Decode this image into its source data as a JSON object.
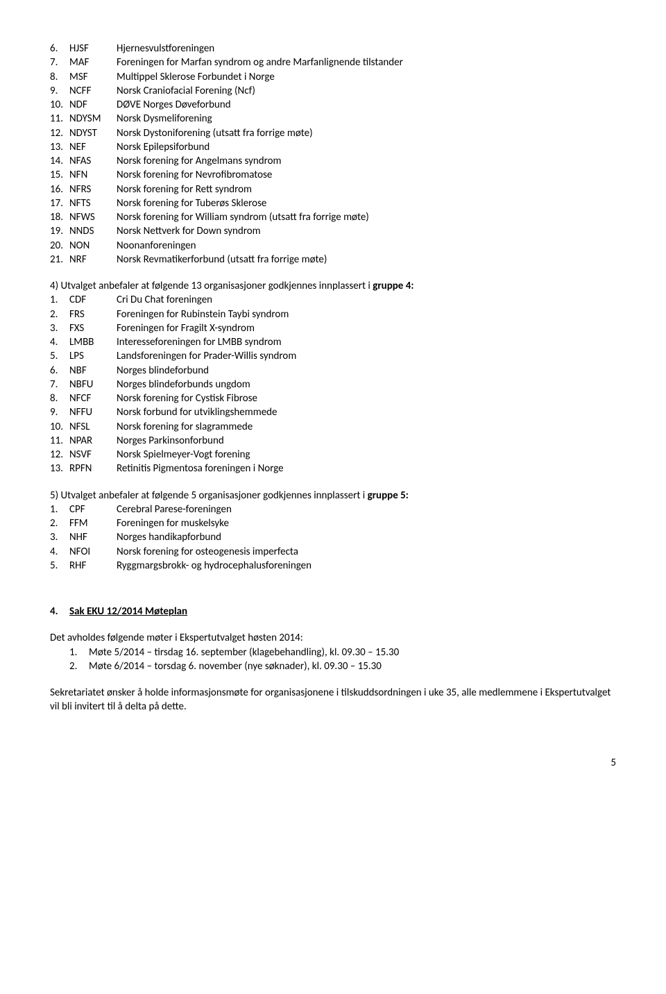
{
  "list1": [
    {
      "n": "6.",
      "a": "HJSF",
      "d": "Hjernesvulstforeningen"
    },
    {
      "n": "7.",
      "a": "MAF",
      "d": "Foreningen for Marfan syndrom og andre Marfanlignende tilstander"
    },
    {
      "n": "8.",
      "a": "MSF",
      "d": "Multippel Sklerose Forbundet i Norge"
    },
    {
      "n": "9.",
      "a": "NCFF",
      "d": "Norsk Craniofacial Forening (Ncf)"
    },
    {
      "n": "10.",
      "a": "NDF",
      "d": "DØVE Norges Døveforbund"
    },
    {
      "n": "11.",
      "a": "NDYSM",
      "d": "Norsk Dysmeliforening"
    },
    {
      "n": "12.",
      "a": "NDYST",
      "d": "Norsk Dystoniforening (utsatt fra forrige møte)"
    },
    {
      "n": "13.",
      "a": "NEF",
      "d": "Norsk Epilepsiforbund"
    },
    {
      "n": "14.",
      "a": "NFAS",
      "d": "Norsk forening for Angelmans syndrom"
    },
    {
      "n": "15.",
      "a": "NFN",
      "d": "Norsk forening for Nevrofibromatose"
    },
    {
      "n": "16.",
      "a": "NFRS",
      "d": "Norsk forening for Rett syndrom"
    },
    {
      "n": "17.",
      "a": "NFTS",
      "d": "Norsk forening for Tuberøs Sklerose"
    },
    {
      "n": "18.",
      "a": "NFWS",
      "d": "Norsk forening for William syndrom (utsatt fra forrige møte)"
    },
    {
      "n": "19.",
      "a": "NNDS",
      "d": "Norsk Nettverk for Down syndrom"
    },
    {
      "n": "20.",
      "a": "NON",
      "d": "Noonanforeningen"
    },
    {
      "n": "21.",
      "a": "NRF",
      "d": "Norsk Revmatikerforbund (utsatt fra forrige møte)"
    }
  ],
  "para4_lead": "4) Utvalget anbefaler at følgende 13 organisasjoner godkjennes innplassert i ",
  "para4_bold": "gruppe 4:",
  "list4": [
    {
      "n": "1.",
      "a": "CDF",
      "d": "Cri Du Chat foreningen"
    },
    {
      "n": "2.",
      "a": "FRS",
      "d": "Foreningen for Rubinstein Taybi syndrom"
    },
    {
      "n": "3.",
      "a": "FXS",
      "d": "Foreningen for Fragilt X-syndrom"
    },
    {
      "n": "4.",
      "a": "LMBB",
      "d": "Interesseforeningen for LMBB syndrom"
    },
    {
      "n": "5.",
      "a": "LPS",
      "d": "Landsforeningen for Prader-Willis syndrom"
    },
    {
      "n": "6.",
      "a": "NBF",
      "d": "Norges blindeforbund"
    },
    {
      "n": "7.",
      "a": "NBFU",
      "d": "Norges blindeforbunds ungdom"
    },
    {
      "n": "8.",
      "a": "NFCF",
      "d": "Norsk forening for Cystisk Fibrose"
    },
    {
      "n": "9.",
      "a": "NFFU",
      "d": "Norsk forbund for utviklingshemmede"
    },
    {
      "n": "10.",
      "a": "NFSL",
      "d": "Norsk forening for slagrammede"
    },
    {
      "n": "11.",
      "a": "NPAR",
      "d": "Norges Parkinsonforbund"
    },
    {
      "n": "12.",
      "a": "NSVF",
      "d": "Norsk Spielmeyer-Vogt forening"
    },
    {
      "n": "13.",
      "a": "RPFN",
      "d": "Retinitis Pigmentosa foreningen i Norge"
    }
  ],
  "para5_lead": "5) Utvalget anbefaler at følgende 5 organisasjoner godkjennes innplassert i ",
  "para5_bold": "gruppe 5:",
  "list5": [
    {
      "n": "1.",
      "a": "CPF",
      "d": "Cerebral Parese-foreningen"
    },
    {
      "n": "2.",
      "a": "FFM",
      "d": "Foreningen for muskelsyke"
    },
    {
      "n": "3.",
      "a": "NHF",
      "d": "Norges handikapforbund"
    },
    {
      "n": "4.",
      "a": "NFOI",
      "d": "Norsk forening for osteogenesis imperfecta"
    },
    {
      "n": "5.",
      "a": "RHF",
      "d": "Ryggmargsbrokk- og hydrocephalusforeningen"
    }
  ],
  "section4": {
    "num": "4.",
    "title": "Sak EKU 12/2014      Møteplan"
  },
  "schedule_intro": "Det avholdes følgende møter i Ekspertutvalget høsten 2014:",
  "schedule": [
    {
      "n": "1.",
      "t": "Møte 5/2014 – tirsdag 16. september (klagebehandling), kl. 09.30 – 15.30"
    },
    {
      "n": "2.",
      "t": "Møte 6/2014 – torsdag 6. november (nye søknader), kl. 09.30 – 15.30"
    }
  ],
  "footer_text": "Sekretariatet ønsker å holde informasjonsmøte for organisasjonene i tilskuddsordningen i uke 35, alle medlemmene i Ekspertutvalget vil bli invitert til å delta på dette.",
  "page_number": "5"
}
